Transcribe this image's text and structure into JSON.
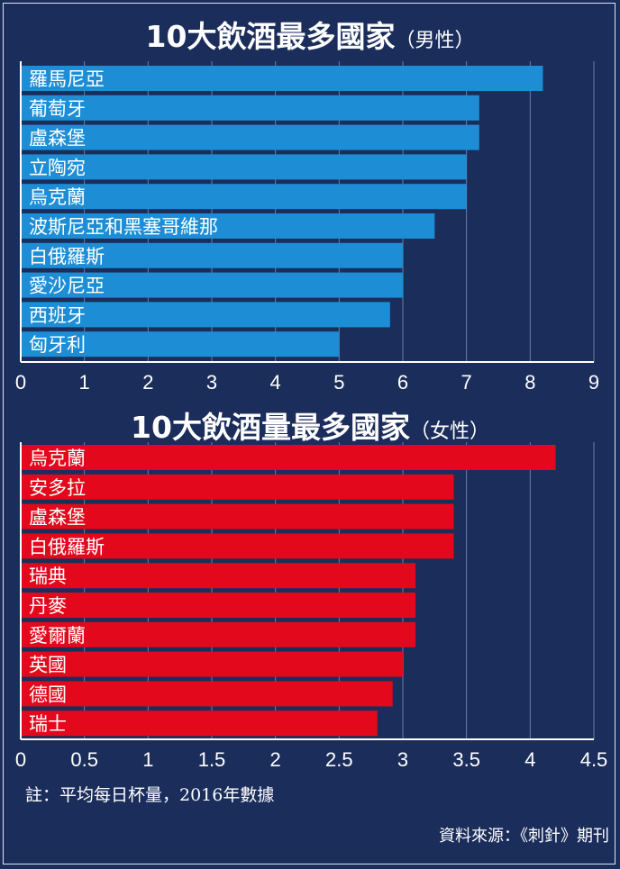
{
  "chart_data": [
    {
      "type": "bar",
      "orientation": "horizontal",
      "title": "10大飲酒最多國家",
      "subtitle": "（男性）",
      "categories": [
        "羅馬尼亞",
        "葡萄牙",
        "盧森堡",
        "立陶宛",
        "烏克蘭",
        "波斯尼亞和黑塞哥維那",
        "白俄羅斯",
        "愛沙尼亞",
        "西班牙",
        "匈牙利"
      ],
      "values": [
        8.2,
        7.2,
        7.2,
        7.0,
        7.0,
        6.5,
        6.0,
        6.0,
        5.8,
        5.0
      ],
      "xlim": [
        0,
        9
      ],
      "xticks": [
        "0",
        "1",
        "2",
        "3",
        "4",
        "5",
        "6",
        "7",
        "8",
        "9"
      ],
      "bar_color": "#1d8ed6",
      "grid": true
    },
    {
      "type": "bar",
      "orientation": "horizontal",
      "title": "10大飲酒量最多國家",
      "subtitle": "（女性）",
      "categories": [
        "烏克蘭",
        "安多拉",
        "盧森堡",
        "白俄羅斯",
        "瑞典",
        "丹麥",
        "愛爾蘭",
        "英國",
        "德國",
        "瑞士"
      ],
      "values": [
        4.2,
        3.4,
        3.4,
        3.4,
        3.1,
        3.1,
        3.1,
        3.0,
        2.92,
        2.8
      ],
      "xlim": [
        0,
        4.5
      ],
      "xticks": [
        "0",
        "0.5",
        "1",
        "1.5",
        "2",
        "2.5",
        "3",
        "3.5",
        "4",
        "4.5"
      ],
      "bar_color": "#e3081b",
      "grid": true
    }
  ],
  "note": "註：平均每日杯量，2016年數據",
  "source": "資料來源：《刺針》期刊",
  "colors": {
    "background": "#1b2d5b",
    "male_bar": "#1d8ed6",
    "female_bar": "#e3081b"
  }
}
